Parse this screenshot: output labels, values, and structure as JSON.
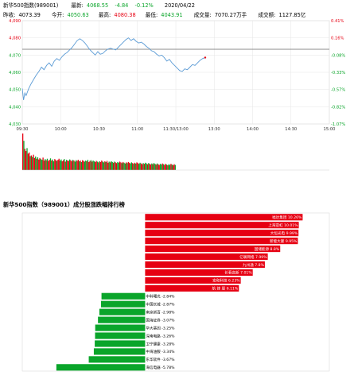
{
  "header": {
    "name": "新华500指数(989001)",
    "latest_label": "最新:",
    "latest_value": "4068.55",
    "change": "-4.84",
    "change_pct": "-0.12%",
    "date": "2020/04/22",
    "prev_close_label": "昨收:",
    "prev_close": "4073.39",
    "open_label": "今开:",
    "open": "4050.63",
    "high_label": "最高:",
    "high": "4080.38",
    "low_label": "最低:",
    "low": "4043.91",
    "volume_label": "成交量:",
    "volume": "7070.27万手",
    "amount_label": "成交额:",
    "amount": "1127.85亿"
  },
  "colors": {
    "up": "#e60012",
    "down": "#0aa52a",
    "line": "#5b9bd5",
    "ref": "#666666",
    "grid": "#e6e6e6"
  },
  "chart_data": [
    {
      "type": "line",
      "title": "",
      "x_ticks": [
        "09:30",
        "10:00",
        "10:30",
        "11:00",
        "11:30/13:00",
        "13:30",
        "14:00",
        "14:30",
        "15:00"
      ],
      "y_left_ticks": [
        "4,090",
        "4,080",
        "4,070",
        "4,060",
        "4,050",
        "4,040",
        "4,030"
      ],
      "y_right_ticks": [
        "0.41%",
        "0.16%",
        "-0.08%",
        "-0.33%",
        "-0.57%",
        "-0.82%",
        "-1.07%"
      ],
      "ylim": [
        4030,
        4090
      ],
      "reference": 4073.39,
      "x_minutes": [
        0,
        1,
        2,
        3,
        5,
        7,
        9,
        11,
        13,
        15,
        17,
        19,
        21,
        23,
        25,
        27,
        29,
        31,
        33,
        35,
        37,
        39,
        41,
        43,
        45,
        47,
        49,
        51,
        53,
        55,
        57,
        59,
        61,
        63,
        65,
        67,
        69,
        71,
        73,
        75,
        77,
        79,
        81,
        83,
        85,
        87,
        89,
        91,
        93,
        95,
        97,
        99,
        101,
        103,
        105,
        107,
        109,
        111,
        113,
        115,
        117,
        119,
        121,
        123,
        125,
        127,
        129,
        131,
        133,
        135,
        137,
        139,
        141,
        143
      ],
      "values": [
        4050.6,
        4043.9,
        4048.0,
        4046.5,
        4050.5,
        4053.5,
        4056.0,
        4058.5,
        4060.5,
        4063.0,
        4061.5,
        4064.0,
        4065.5,
        4063.5,
        4066.5,
        4068.0,
        4067.0,
        4069.0,
        4070.5,
        4071.5,
        4073.0,
        4074.5,
        4076.5,
        4078.5,
        4079.5,
        4078.5,
        4077.0,
        4075.0,
        4073.0,
        4071.5,
        4070.0,
        4072.0,
        4070.5,
        4071.0,
        4072.5,
        4073.5,
        4074.0,
        4073.5,
        4073.0,
        4074.5,
        4076.0,
        4077.5,
        4079.0,
        4080.0,
        4078.5,
        4079.5,
        4078.0,
        4077.0,
        4077.5,
        4076.5,
        4075.0,
        4074.0,
        4072.5,
        4072.0,
        4070.5,
        4069.5,
        4070.0,
        4068.5,
        4066.5,
        4067.5,
        4065.5,
        4064.0,
        4062.5,
        4061.0,
        4060.5,
        4062.0,
        4061.5,
        4063.0,
        4064.5,
        4064.0,
        4065.5,
        4067.0,
        4068.0,
        4068.55
      ]
    },
    {
      "type": "bar",
      "title": "",
      "volumes": [
        100,
        80,
        58,
        52,
        60,
        45,
        48,
        38,
        40,
        36,
        42,
        33,
        37,
        31,
        35,
        29,
        33,
        30,
        28,
        34,
        26,
        30,
        27,
        31,
        25,
        28,
        32,
        26,
        29,
        24,
        30,
        27,
        25,
        28,
        31,
        26,
        29,
        24,
        27,
        30,
        23,
        28,
        26,
        25,
        29,
        27,
        24,
        28,
        26,
        23,
        27,
        25,
        28,
        24,
        26,
        22,
        27,
        25,
        23,
        26,
        24,
        28,
        22,
        25,
        27,
        23,
        26,
        24,
        22,
        25,
        23,
        21,
        24,
        22,
        26,
        23,
        21,
        24,
        22,
        25,
        20,
        23,
        21,
        24,
        22,
        20,
        23,
        21,
        19,
        22,
        20,
        23,
        21,
        19,
        22,
        20,
        18,
        21,
        19,
        22,
        20,
        18,
        21,
        19,
        17,
        20,
        18,
        21,
        19,
        17,
        20,
        18,
        16,
        19,
        17,
        20,
        18,
        16,
        19,
        17,
        15,
        18,
        16,
        19,
        17,
        15,
        18,
        16,
        14,
        17,
        15,
        18,
        16,
        14,
        17,
        15,
        13,
        16,
        14,
        17,
        15,
        13,
        16,
        14
      ],
      "up_flags": [
        1,
        0,
        1,
        1,
        0,
        1,
        1,
        0,
        1,
        0,
        1,
        1,
        0,
        1,
        0,
        1,
        1,
        0,
        0,
        1,
        1,
        0,
        1,
        0,
        1,
        1,
        0,
        1,
        0,
        0,
        1,
        1,
        0,
        1,
        1,
        0,
        0,
        1,
        1,
        0,
        1,
        0,
        1,
        1,
        0,
        1,
        1,
        0,
        1,
        0,
        0,
        1,
        1,
        0,
        1,
        0,
        1,
        1,
        0,
        0,
        1,
        0,
        1,
        1,
        0,
        1,
        0,
        0,
        1,
        1,
        0,
        1,
        0,
        1,
        1,
        0,
        0,
        1,
        0,
        1,
        1,
        0,
        1,
        0,
        0,
        1,
        0,
        1,
        1,
        0,
        0,
        1,
        1,
        0,
        1,
        0,
        0,
        1,
        0,
        1,
        1,
        0,
        0,
        1,
        0,
        1,
        0,
        1,
        1,
        0,
        0,
        1,
        1,
        0,
        1,
        0,
        0,
        1,
        0,
        1,
        1,
        0,
        1,
        0,
        0,
        1,
        0,
        1,
        1,
        0,
        0,
        1,
        0,
        1,
        1,
        0,
        1,
        0,
        0,
        1,
        0,
        1,
        1,
        0
      ]
    },
    {
      "type": "bar",
      "title": "新华500指数（989001）成分股涨跌幅排行榜",
      "categories": [
        "福达集团",
        "上海亚虹",
        "大恒光电",
        "新能大厦",
        "国储能源",
        "亿联网络",
        "九州通",
        "长春高新",
        "宏和科技",
        "航 锋 股",
        "中科曙光",
        "中国长城",
        "南京新百",
        "国海证券",
        "华大基因",
        "深南电路",
        "卫宁健康",
        "中海油服",
        "东华软件",
        "海信电器"
      ],
      "category_text": [
        "福达集团 10.26%",
        "上海亚虹 10.01%",
        "大恒光电 9.99%",
        "新能大厦 9.95%",
        "国储能源 8.8%",
        "亿联网络 7.99%",
        "九州通 7.8%",
        "长春高新 7.01%",
        "宏和科技 6.23%",
        "航 锋 股 6.11%",
        "中科曙光 -2.84%",
        "中国长城 -2.87%",
        "南京新百 -2.98%",
        "国海证券 -3.07%",
        "华大基因 -3.25%",
        "深南电路 -3.26%",
        "卫宁健康 -3.28%",
        "中海油服 -3.34%",
        "东华软件 -3.67%",
        "海信电器 -5.78%"
      ],
      "values": [
        10.26,
        10.01,
        9.99,
        9.95,
        8.8,
        7.99,
        7.8,
        7.01,
        6.23,
        6.11,
        -2.84,
        -2.87,
        -2.98,
        -3.07,
        -3.25,
        -3.26,
        -3.28,
        -3.34,
        -3.67,
        -5.78
      ]
    }
  ]
}
